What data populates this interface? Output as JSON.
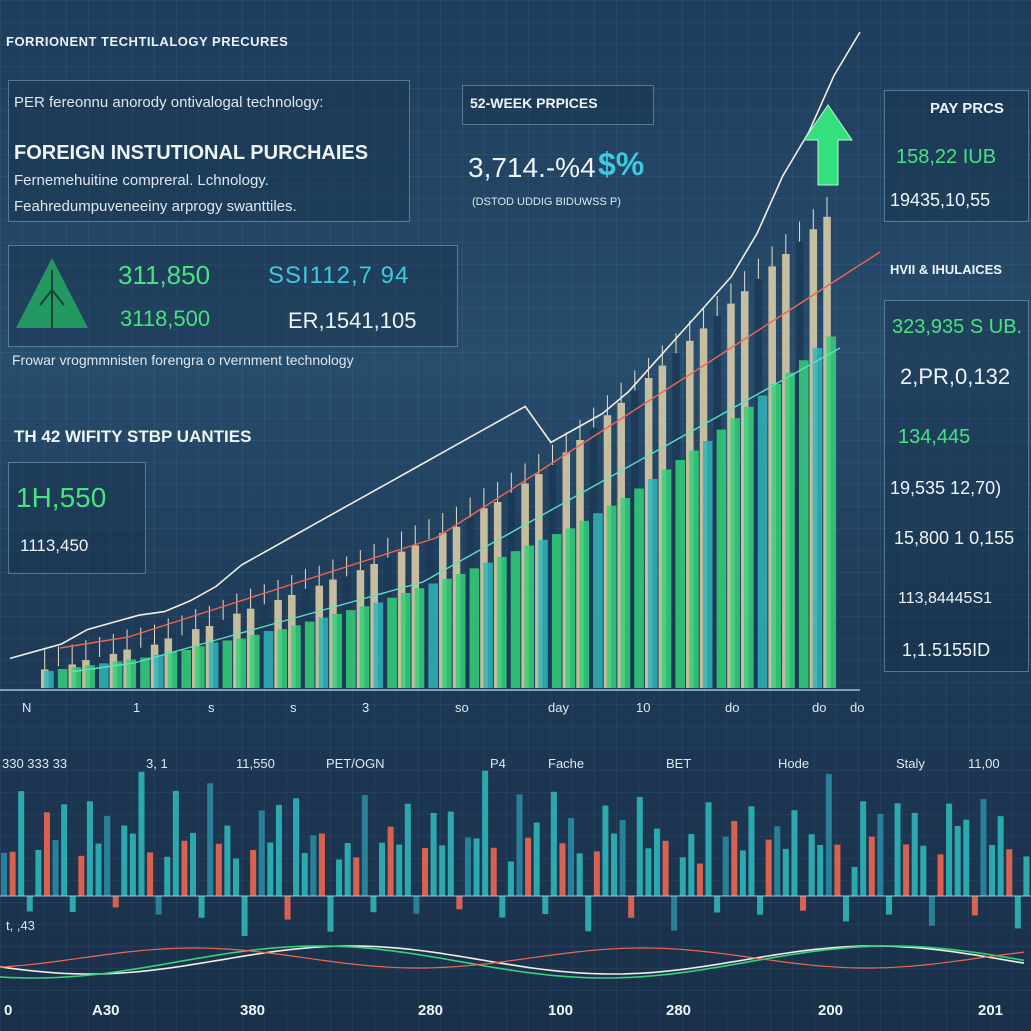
{
  "header": {
    "title": "FORRIONENT TECHTILALOGY PRECURES",
    "subtitle": "PER fereonnu anorody ontivalogal technology:",
    "section_title": "FOREIGN INSTUTIONAL PURCHAIES",
    "desc1": "Fernemehuitine compreral. Lchnology.",
    "desc2": "Feahredumpuveneeiny arprogy swanttiles."
  },
  "left_stats": {
    "value1": "311,850",
    "value2": "3118,500",
    "value3": "SSI112,7 94",
    "value4": "ER,1541,105",
    "footnote": "Frowar vrogmmnisten forengra o rvernment technology",
    "quant_label": "TH 42 WIFITY STBP UANTIES",
    "quant_value1": "1H,550",
    "quant_value2": "1113,450"
  },
  "week52": {
    "label": "52-WEEK PRPICES",
    "value": "3,714.-%4",
    "currency": "$%",
    "note": "(DSTOD UDDIG BIDUWSS P)"
  },
  "right_panel": {
    "title": "PAY PRCS",
    "v1": "158,22 IUB",
    "v2": "19435,10,55",
    "label2": "HVII & IHULAICES",
    "v3": "323,935 S UB.",
    "v4": "2,PR,0,132",
    "v5": "134,445",
    "v6": "19,535 12,70)",
    "v7": "15,800 1 0,155",
    "v8": "113,84445S1",
    "v9": "1,1.5155ID"
  },
  "mid_ticks": [
    "N",
    "1",
    "s",
    "s",
    "3",
    "so",
    "day",
    "10",
    "do",
    "do",
    "do"
  ],
  "lower_labels": [
    "330 333 33",
    "3, 1",
    "11,550",
    "PET/OGN",
    "P4",
    "Fache",
    "BET",
    "Hode",
    "Staly",
    "11,00"
  ],
  "lower_left_label": "t, ,43",
  "bottom_ticks": [
    "0",
    "A30",
    "380",
    "280",
    "100",
    "280",
    "200",
    "201"
  ],
  "colors": {
    "green": "#34d27a",
    "beige": "#d8cba6",
    "teal": "#2fb6b8",
    "red": "#ee6650",
    "line_white": "#f1ede2",
    "arrow_green": "#34e07e"
  },
  "chart_data": [
    {
      "type": "bar",
      "title": "",
      "series": [
        {
          "values": [
            18,
            20,
            22,
            24,
            26,
            28,
            30,
            32,
            35,
            38,
            40,
            44,
            48,
            50,
            52,
            56,
            60,
            62,
            66,
            70,
            74,
            78,
            82,
            86,
            90,
            95,
            100,
            105,
            110,
            115,
            120,
            126,
            132,
            138,
            144,
            150,
            156,
            162,
            168,
            176,
            184,
            192,
            200,
            210,
            220,
            230,
            240,
            250,
            260,
            272,
            284,
            296,
            308,
            320,
            332,
            345,
            358,
            370
          ]
        },
        {
          "values": [
            30,
            35,
            38,
            45,
            50,
            55,
            62,
            65,
            70,
            80,
            85,
            95,
            100,
            110,
            120,
            128,
            135,
            142,
            150,
            160,
            165,
            175,
            180,
            190,
            200,
            210,
            220,
            230,
            240,
            250,
            260,
            275,
            290,
            300,
            315,
            330,
            345,
            360,
            380,
            400,
            420,
            440,
            460,
            480,
            500,
            520,
            540,
            560,
            580,
            600,
            620,
            640,
            660,
            680,
            700,
            720,
            740,
            760
          ]
        }
      ]
    },
    {
      "type": "line",
      "series": [
        {
          "values": [
            30,
            40,
            50,
            70,
            80,
            90,
            95,
            110,
            130,
            160,
            180,
            200,
            220,
            240,
            260,
            280,
            300,
            320,
            340,
            360,
            380,
            330,
            350,
            370,
            400,
            440,
            480,
            520,
            560,
            620,
            700,
            760,
            840,
            900
          ]
        },
        {
          "values": [
            20,
            25,
            30,
            40,
            50,
            60,
            70,
            80,
            90,
            100,
            110,
            120,
            140,
            160,
            180,
            200,
            220,
            240,
            260,
            280,
            300,
            320,
            340,
            360,
            380
          ]
        }
      ]
    },
    {
      "type": "bar",
      "title": "",
      "series": [
        {
          "values": [
            60,
            40,
            80,
            30,
            50,
            90,
            45,
            70,
            35,
            55,
            85,
            40,
            65,
            30,
            75,
            50,
            95,
            40,
            60,
            35,
            80,
            45,
            70,
            55,
            90,
            40,
            65,
            50,
            85,
            35,
            70,
            60,
            95,
            45,
            75,
            40,
            80,
            55,
            65,
            30
          ]
        }
      ]
    }
  ]
}
